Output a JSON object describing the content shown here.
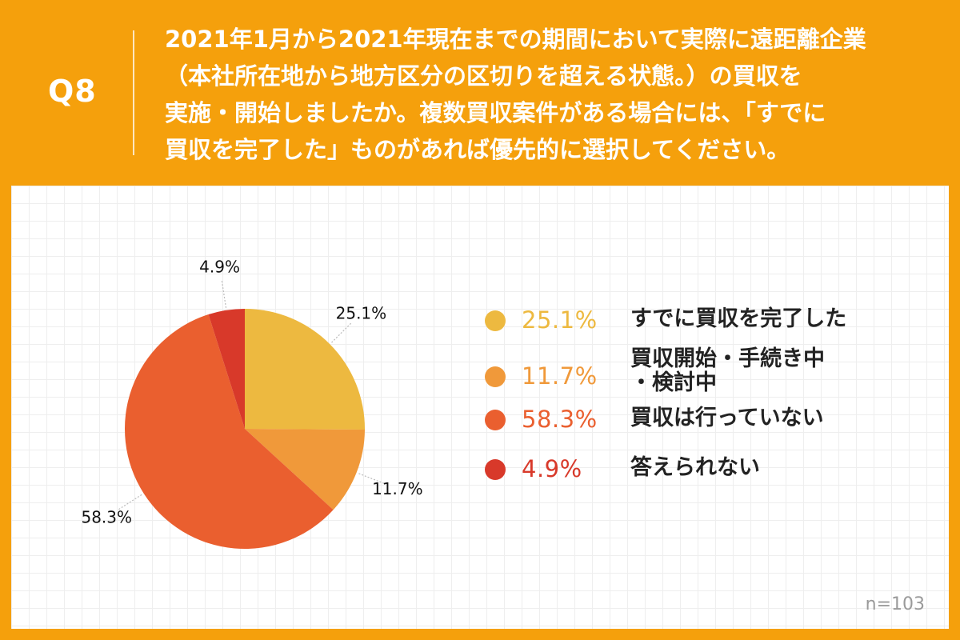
{
  "question": {
    "label": "Q8",
    "lines": [
      "2021年1月から2021年現在までの期間において実際に遠距離企業",
      "（本社所在地から地方区分の区切りを超える状態。）の買収を",
      "実施・開始しましたか。複数買収案件がある場合には、「すでに",
      "買収を完了した」ものがあれば優先的に選択してください。"
    ]
  },
  "chart_data": {
    "type": "pie",
    "slices": [
      {
        "name": "すでに買収を完了した",
        "value": 25.1,
        "label": "25.1%",
        "color": "#EDB940"
      },
      {
        "name": "買収開始・手続き中\n・検討中",
        "value": 11.7,
        "label": "11.7%",
        "color": "#F0993A"
      },
      {
        "name": "買収は行っていない",
        "value": 58.3,
        "label": "58.3%",
        "color": "#EA5F2F"
      },
      {
        "name": "答えられない",
        "value": 4.9,
        "label": "4.9%",
        "color": "#D8392A"
      }
    ],
    "legend_position": "right",
    "sample_size": "n=103"
  }
}
